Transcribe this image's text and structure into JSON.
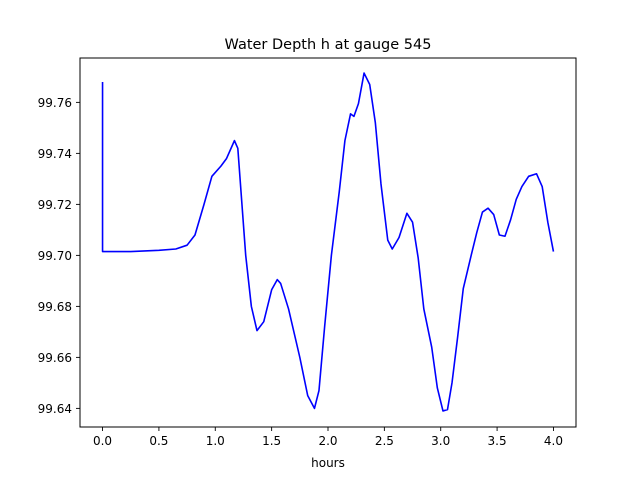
{
  "chart_data": {
    "type": "line",
    "title": "Water Depth h at gauge 545",
    "xlabel": "hours",
    "ylabel": "",
    "xlim": [
      -0.2,
      4.2
    ],
    "ylim": [
      99.6327,
      99.7774
    ],
    "xticks": [
      0.0,
      0.5,
      1.0,
      1.5,
      2.0,
      2.5,
      3.0,
      3.5,
      4.0
    ],
    "xtick_labels": [
      "0.0",
      "0.5",
      "1.0",
      "1.5",
      "2.0",
      "2.5",
      "3.0",
      "3.5",
      "4.0"
    ],
    "yticks": [
      99.64,
      99.66,
      99.68,
      99.7,
      99.72,
      99.74,
      99.76
    ],
    "ytick_labels": [
      "99.64",
      "99.66",
      "99.68",
      "99.70",
      "99.72",
      "99.74",
      "99.76"
    ],
    "grid": false,
    "series": [
      {
        "color": "#0000ff",
        "x": [
          0.0,
          0.0,
          0.25,
          0.5,
          0.65,
          0.75,
          0.82,
          0.9,
          0.97,
          1.05,
          1.1,
          1.17,
          1.2,
          1.27,
          1.32,
          1.37,
          1.43,
          1.5,
          1.55,
          1.58,
          1.65,
          1.75,
          1.82,
          1.88,
          1.92,
          1.97,
          2.03,
          2.1,
          2.15,
          2.2,
          2.23,
          2.27,
          2.32,
          2.37,
          2.42,
          2.47,
          2.53,
          2.57,
          2.63,
          2.7,
          2.75,
          2.8,
          2.85,
          2.92,
          2.97,
          3.02,
          3.06,
          3.1,
          3.15,
          3.2,
          3.27,
          3.32,
          3.37,
          3.42,
          3.47,
          3.52,
          3.57,
          3.62,
          3.67,
          3.72,
          3.78,
          3.85,
          3.9,
          3.95,
          4.0
        ],
        "values": [
          99.768,
          99.7015,
          99.7015,
          99.702,
          99.7025,
          99.704,
          99.708,
          99.72,
          99.731,
          99.735,
          99.738,
          99.745,
          99.742,
          99.7,
          99.68,
          99.6705,
          99.674,
          99.6865,
          99.6905,
          99.689,
          99.679,
          99.66,
          99.645,
          99.64,
          99.647,
          99.672,
          99.7,
          99.725,
          99.745,
          99.7555,
          99.7545,
          99.7595,
          99.7715,
          99.767,
          99.752,
          99.728,
          99.706,
          99.7025,
          99.707,
          99.7165,
          99.713,
          99.699,
          99.679,
          99.664,
          99.648,
          99.639,
          99.6395,
          99.65,
          99.668,
          99.687,
          99.7,
          99.709,
          99.717,
          99.7185,
          99.716,
          99.708,
          99.7075,
          99.714,
          99.722,
          99.727,
          99.731,
          99.732,
          99.727,
          99.713,
          99.7015
        ]
      }
    ]
  }
}
